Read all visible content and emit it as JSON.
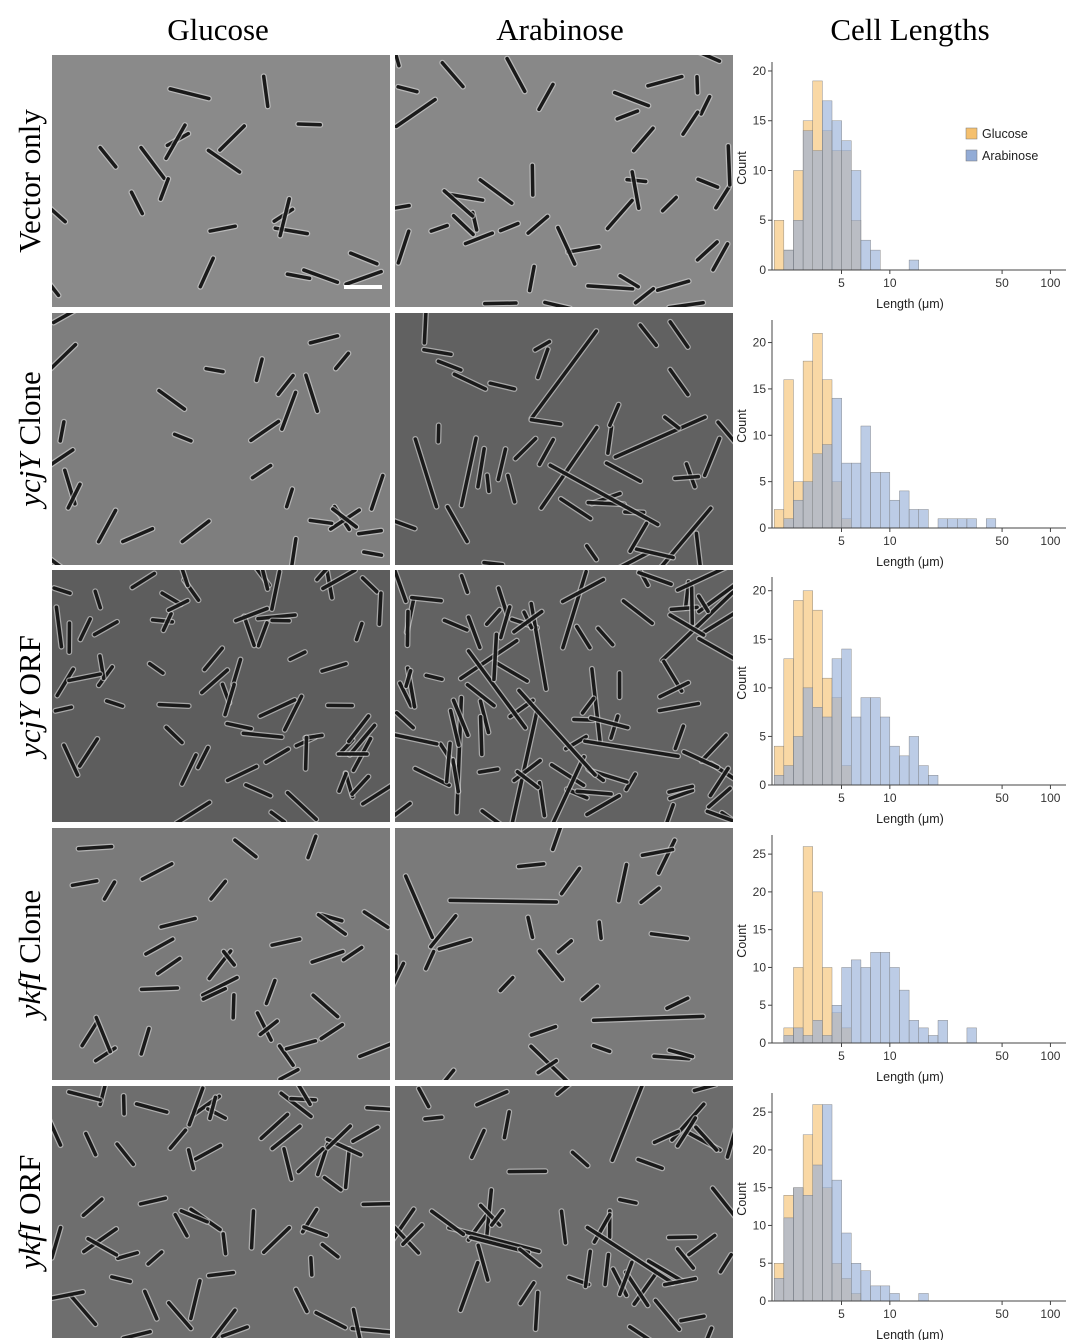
{
  "column_headers": [
    "Glucose",
    "Arabinose",
    "Cell Lengths"
  ],
  "row_labels": [
    {
      "plain": "Vector only"
    },
    {
      "italic": "ycjY",
      "plain": "Clone"
    },
    {
      "italic": "ycjY",
      "plain": "ORF"
    },
    {
      "italic": "ykfI",
      "plain": "Clone"
    },
    {
      "italic": "ykfI",
      "plain": "ORF"
    }
  ],
  "chart_data": [
    {
      "type": "histogram",
      "xlabel": "Length (μm)",
      "ylabel": "Count",
      "log_x": true,
      "legend": "upper right",
      "bins": [
        1.905,
        2.188,
        2.512,
        2.884,
        3.311,
        3.802,
        4.365,
        5.012,
        5.754,
        6.607,
        7.586,
        8.71,
        10,
        11.48,
        13.18,
        15.14,
        17.38,
        19.95,
        22.91,
        26.3,
        30.2,
        34.67,
        39.81,
        45.71,
        52.48
      ],
      "xlim": [
        1.9,
        125
      ],
      "xticks": [
        5,
        10,
        50,
        100
      ],
      "ylim": [
        0,
        20.5
      ],
      "yticks": [
        0,
        5,
        10,
        15,
        20
      ],
      "series": [
        {
          "name": "Glucose",
          "color": "#f5c06e",
          "values": [
            5,
            2,
            10,
            15,
            19,
            14,
            12,
            12,
            5,
            0,
            0,
            0,
            0,
            0,
            0,
            0,
            0,
            0,
            0,
            0,
            0,
            0,
            0,
            0
          ]
        },
        {
          "name": "Arabinose",
          "color": "#93acd6",
          "values": [
            0,
            2,
            5,
            14,
            12,
            17,
            15,
            13,
            10,
            3,
            2,
            0,
            0,
            0,
            1,
            0,
            0,
            0,
            0,
            0,
            0,
            0,
            0,
            0
          ]
        }
      ]
    },
    {
      "type": "histogram",
      "xlabel": "Length (μm)",
      "ylabel": "Count",
      "log_x": true,
      "legend": "none",
      "bins": [
        1.905,
        2.188,
        2.512,
        2.884,
        3.311,
        3.802,
        4.365,
        5.012,
        5.754,
        6.607,
        7.586,
        8.71,
        10,
        11.48,
        13.18,
        15.14,
        17.38,
        19.95,
        22.91,
        26.3,
        30.2,
        34.67,
        39.81,
        45.71,
        52.48
      ],
      "xlim": [
        1.9,
        125
      ],
      "xticks": [
        5,
        10,
        50,
        100
      ],
      "ylim": [
        0,
        22
      ],
      "yticks": [
        0,
        5,
        10,
        15,
        20
      ],
      "series": [
        {
          "name": "Glucose",
          "color": "#f5c06e",
          "values": [
            2,
            16,
            5,
            18,
            21,
            16,
            5,
            1,
            0,
            0,
            0,
            0,
            0,
            0,
            0,
            0,
            0,
            0,
            0,
            0,
            0,
            0,
            0,
            0
          ]
        },
        {
          "name": "Arabinose",
          "color": "#93acd6",
          "values": [
            0,
            1,
            3,
            5,
            8,
            9,
            14,
            7,
            7,
            11,
            6,
            6,
            3,
            4,
            2,
            2,
            0,
            1,
            1,
            1,
            1,
            0,
            1,
            0
          ]
        }
      ]
    },
    {
      "type": "histogram",
      "xlabel": "Length (μm)",
      "ylabel": "Count",
      "log_x": true,
      "legend": "none",
      "bins": [
        1.905,
        2.188,
        2.512,
        2.884,
        3.311,
        3.802,
        4.365,
        5.012,
        5.754,
        6.607,
        7.586,
        8.71,
        10,
        11.48,
        13.18,
        15.14,
        17.38,
        19.95,
        22.91,
        26.3,
        30.2,
        34.67,
        39.81,
        45.71,
        52.48
      ],
      "xlim": [
        1.9,
        125
      ],
      "xticks": [
        5,
        10,
        50,
        100
      ],
      "ylim": [
        0,
        21
      ],
      "yticks": [
        0,
        5,
        10,
        15,
        20
      ],
      "series": [
        {
          "name": "Glucose",
          "color": "#f5c06e",
          "values": [
            4,
            13,
            19,
            20,
            18,
            11,
            9,
            2,
            0,
            0,
            0,
            0,
            0,
            0,
            0,
            0,
            0,
            0,
            0,
            0,
            0,
            0,
            0,
            0
          ]
        },
        {
          "name": "Arabinose",
          "color": "#93acd6",
          "values": [
            1,
            2,
            5,
            10,
            8,
            7,
            13,
            14,
            7,
            9,
            9,
            7,
            4,
            3,
            5,
            2,
            1,
            0,
            0,
            0,
            0,
            0,
            0,
            0
          ]
        }
      ]
    },
    {
      "type": "histogram",
      "xlabel": "Length (μm)",
      "ylabel": "Count",
      "log_x": true,
      "legend": "none",
      "bins": [
        1.905,
        2.188,
        2.512,
        2.884,
        3.311,
        3.802,
        4.365,
        5.012,
        5.754,
        6.607,
        7.586,
        8.71,
        10,
        11.48,
        13.18,
        15.14,
        17.38,
        19.95,
        22.91,
        26.3,
        30.2,
        34.67,
        39.81,
        45.71,
        52.48
      ],
      "xlim": [
        1.9,
        125
      ],
      "xticks": [
        5,
        10,
        50,
        100
      ],
      "ylim": [
        0,
        27
      ],
      "yticks": [
        0,
        5,
        10,
        15,
        20,
        25
      ],
      "series": [
        {
          "name": "Glucose",
          "color": "#f5c06e",
          "values": [
            0,
            2,
            10,
            26,
            20,
            10,
            4,
            2,
            0,
            0,
            0,
            0,
            0,
            0,
            0,
            0,
            0,
            0,
            0,
            0,
            0,
            0,
            0,
            0
          ]
        },
        {
          "name": "Arabinose",
          "color": "#93acd6",
          "values": [
            0,
            1,
            2,
            1,
            3,
            1,
            5,
            10,
            11,
            10,
            12,
            12,
            10,
            7,
            3,
            2,
            1,
            3,
            0,
            0,
            2,
            0,
            0,
            0
          ]
        }
      ]
    },
    {
      "type": "histogram",
      "xlabel": "Length (μm)",
      "ylabel": "Count",
      "log_x": true,
      "legend": "none",
      "bins": [
        1.905,
        2.188,
        2.512,
        2.884,
        3.311,
        3.802,
        4.365,
        5.012,
        5.754,
        6.607,
        7.586,
        8.71,
        10,
        11.48,
        13.18,
        15.14,
        17.38,
        19.95,
        22.91,
        26.3,
        30.2,
        34.67,
        39.81,
        45.71,
        52.48
      ],
      "xlim": [
        1.9,
        125
      ],
      "xticks": [
        5,
        10,
        50,
        100
      ],
      "ylim": [
        0,
        27
      ],
      "yticks": [
        0,
        5,
        10,
        15,
        20,
        25
      ],
      "series": [
        {
          "name": "Glucose",
          "color": "#f5c06e",
          "values": [
            5,
            14,
            15,
            22,
            26,
            15,
            5,
            3,
            1,
            0,
            0,
            0,
            0,
            0,
            0,
            0,
            0,
            0,
            0,
            0,
            0,
            0,
            0,
            0
          ]
        },
        {
          "name": "Arabinose",
          "color": "#93acd6",
          "values": [
            3,
            11,
            15,
            14,
            18,
            26,
            16,
            9,
            5,
            4,
            2,
            2,
            1,
            0,
            0,
            1,
            0,
            0,
            0,
            0,
            0,
            0,
            0,
            0
          ]
        }
      ]
    }
  ]
}
